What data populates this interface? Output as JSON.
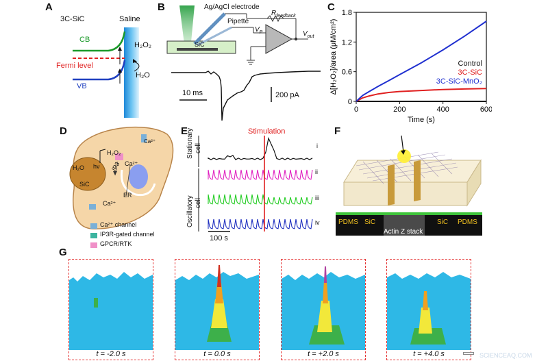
{
  "panels": [
    "A",
    "B",
    "C",
    "D",
    "E",
    "F",
    "G"
  ],
  "panelA": {
    "material": "3C-SiC",
    "medium": "Saline",
    "cb": "CB",
    "vb": "VB",
    "fermi": "Fermi level",
    "h2o2": "H₂O₂",
    "h2o": "H₂O"
  },
  "panelB": {
    "electrode": "Ag/AgCl electrode",
    "pipette": "Pipette",
    "sic": "SiC",
    "rfeedback": "R",
    "rfeedback_sub": "feedback",
    "vp": "V",
    "vp_sub": "P",
    "vout": "V",
    "vout_sub": "out",
    "time_scale": "10 ms",
    "current_scale": "200 pA"
  },
  "panelD": {
    "hv": "hν",
    "h2o2": "H₂O₂",
    "h2o": "H₂O",
    "sic": "SiC",
    "ip3": "IP3",
    "ca": "Ca²⁺",
    "er": "ER",
    "legend": [
      "Ca²⁺ channel",
      "IP3R-gated channel",
      "GPCR/RTK"
    ]
  },
  "panelE": {
    "stimulation": "Stimulation",
    "stationary": "Stationary",
    "stationary2": "cell",
    "oscillatory": "Oscillatory",
    "oscillatory2": "cell",
    "traces": [
      "i",
      "ii",
      "iii",
      "iv"
    ],
    "scale": "100 s",
    "colors": [
      "#111111",
      "#e020c0",
      "#22cc22",
      "#2030c0"
    ]
  },
  "panelF": {
    "pdms": "PDMS",
    "sic": "SiC",
    "stack": "Actin Z stack"
  },
  "panelG": {
    "times": [
      "t = -2.0 s",
      "t = 0.0 s",
      "t = +2.0 s",
      "t = +4.0 s"
    ]
  },
  "watermark": "SCIENCEAQ.COM",
  "chart_data": {
    "type": "line",
    "title": "",
    "xlabel": "Time (s)",
    "ylabel": "Δ[H₂O₂]/area (μM/cm²)",
    "xlim": [
      0,
      600
    ],
    "ylim": [
      0,
      1.8
    ],
    "xticks": [
      0,
      200,
      400,
      600
    ],
    "yticks": [
      0,
      0.6,
      1.2,
      1.8
    ],
    "legend_position": "center-right",
    "series": [
      {
        "name": "Control",
        "color": "#111111",
        "x": [
          0,
          100,
          200,
          300,
          400,
          500,
          600
        ],
        "y": [
          0,
          0,
          0,
          0,
          0,
          0,
          0
        ]
      },
      {
        "name": "3C-SiC",
        "color": "#e02020",
        "x": [
          0,
          30,
          60,
          100,
          150,
          200,
          300,
          400,
          500,
          600
        ],
        "y": [
          0,
          0.07,
          0.11,
          0.15,
          0.18,
          0.2,
          0.22,
          0.24,
          0.25,
          0.26
        ]
      },
      {
        "name": "3C-SiC-MnO₂",
        "color": "#2030d0",
        "x": [
          0,
          30,
          60,
          100,
          150,
          200,
          300,
          400,
          500,
          600
        ],
        "y": [
          0,
          0.12,
          0.2,
          0.3,
          0.42,
          0.54,
          0.78,
          1.04,
          1.32,
          1.62
        ]
      }
    ]
  }
}
